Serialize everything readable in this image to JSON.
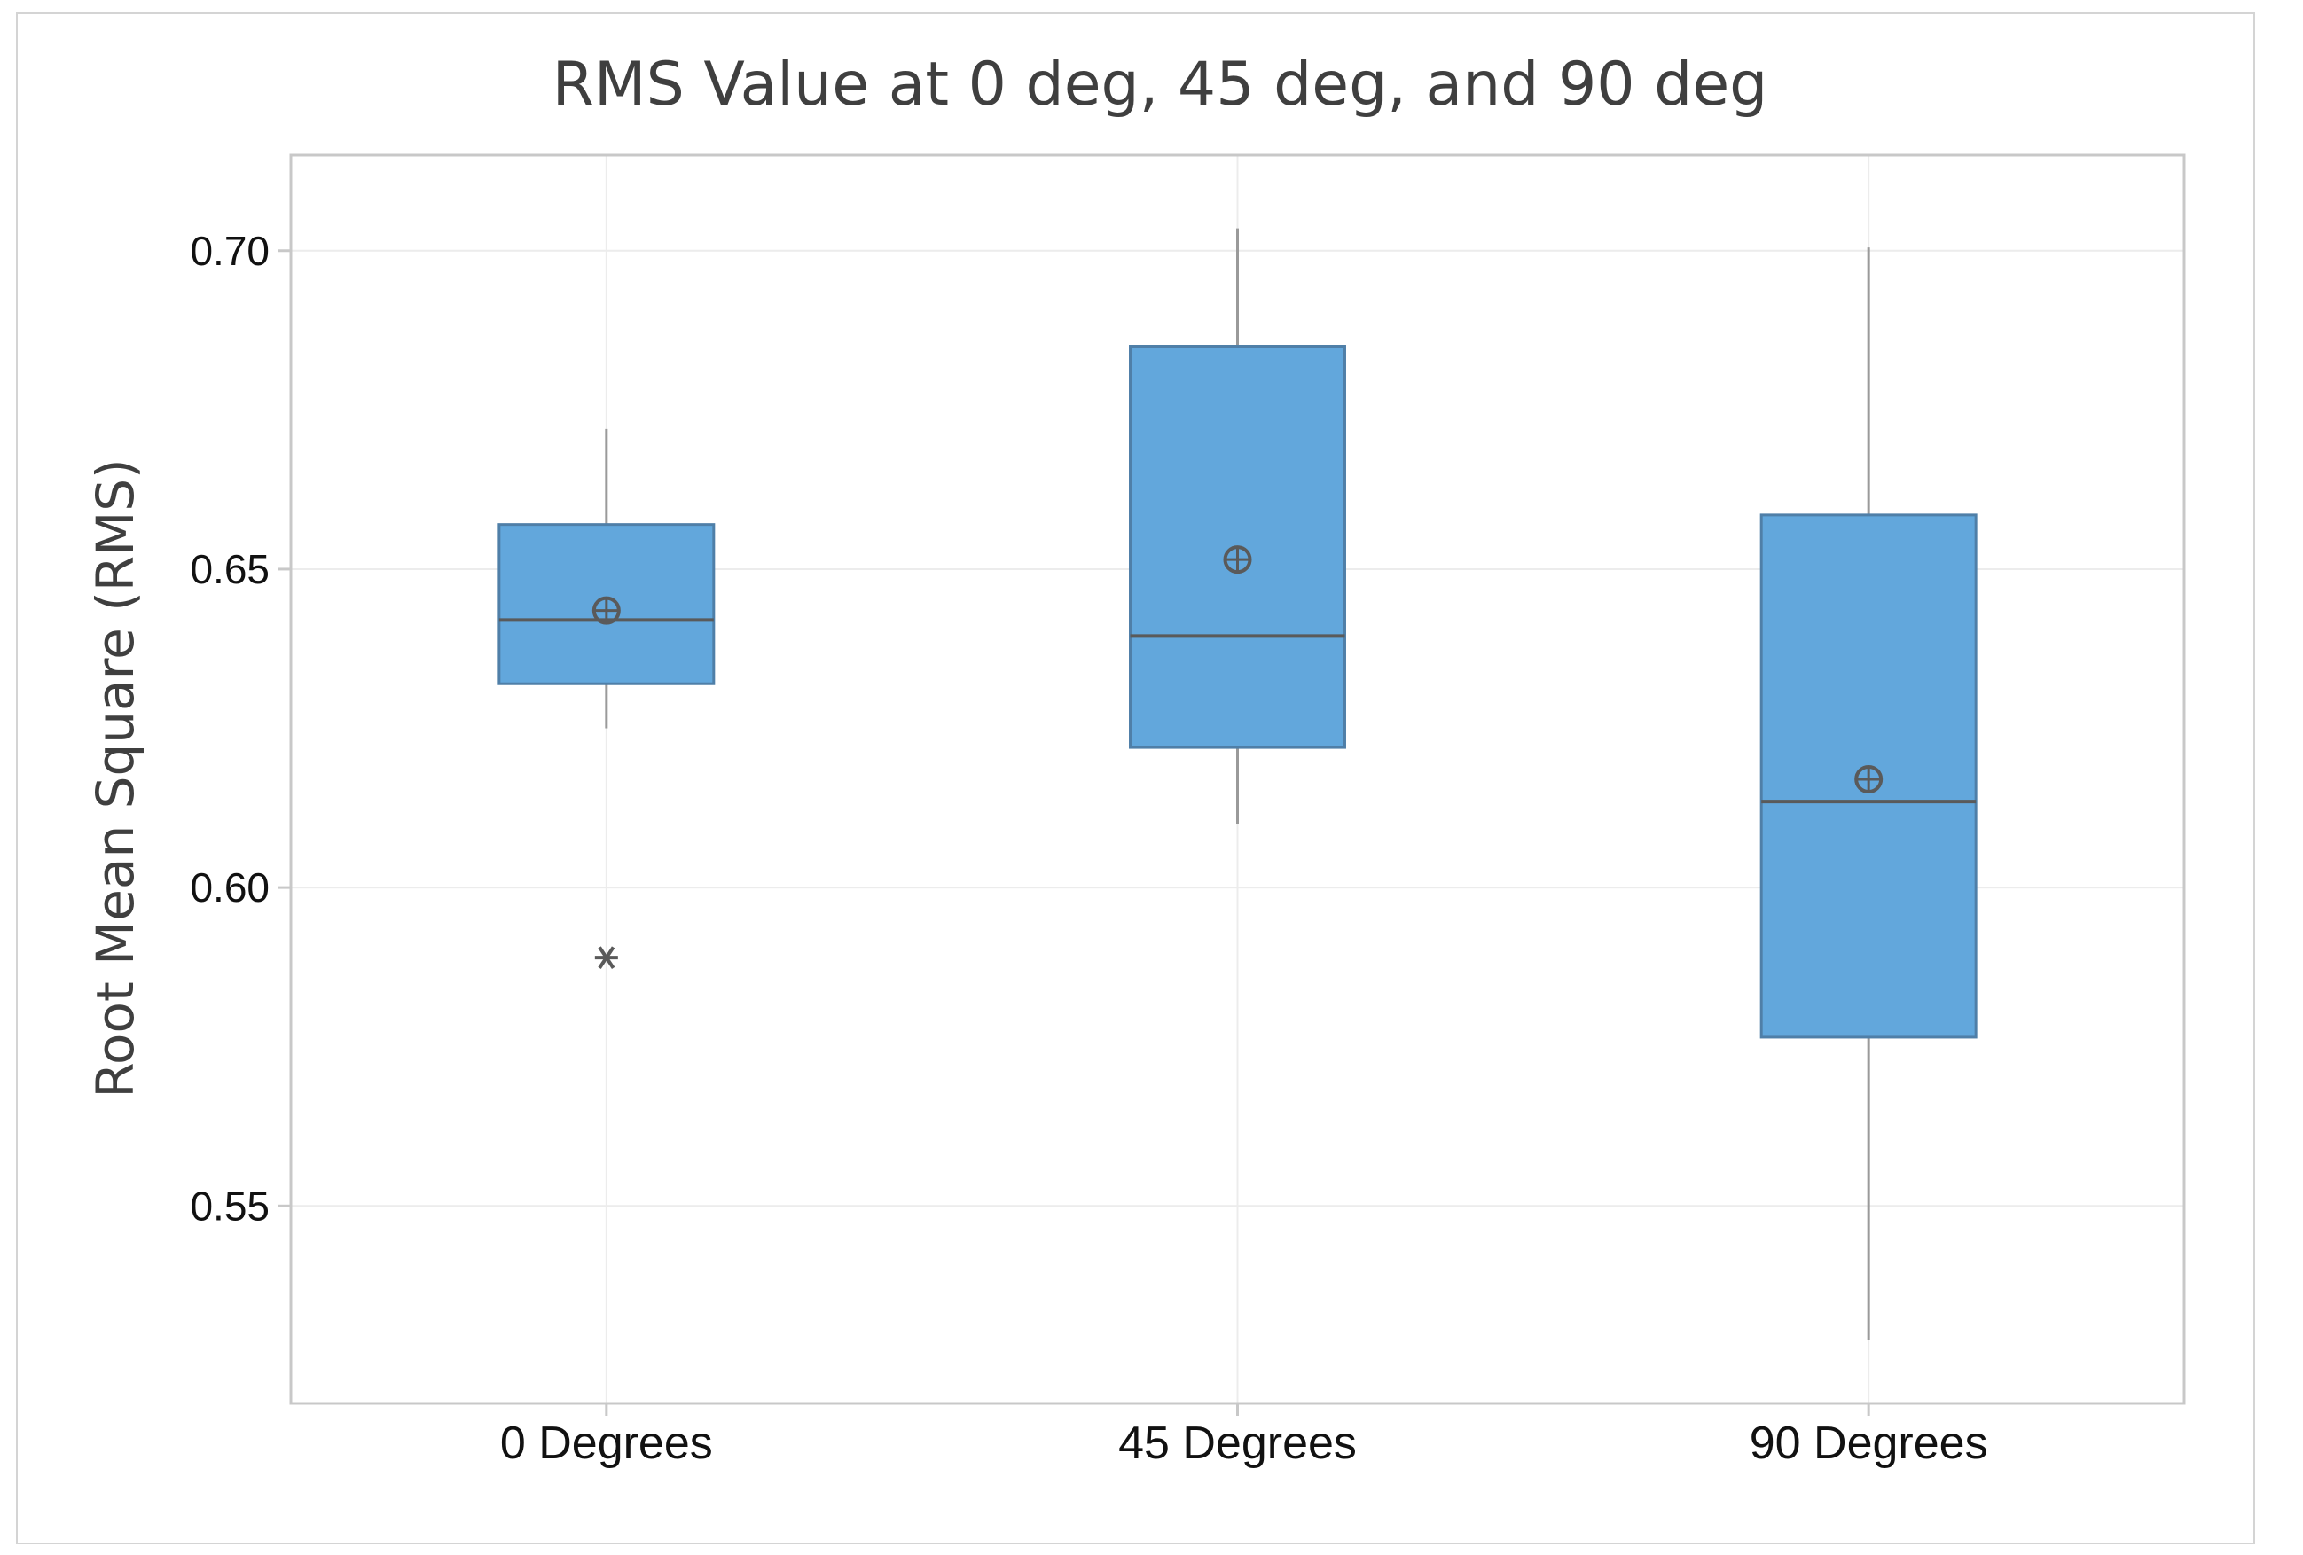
{
  "chart_data": {
    "type": "box",
    "title": "RMS Value at 0 deg, 45 deg, and 90 deg",
    "xlabel": "",
    "ylabel": "Root Mean Square (RMS)",
    "ylim": [
      0.519,
      0.715
    ],
    "yticks": [
      0.55,
      0.6,
      0.65,
      0.7
    ],
    "ytick_labels": [
      "0.55",
      "0.60",
      "0.65",
      "0.70"
    ],
    "grid": true,
    "categories": [
      "0 Degrees",
      "45 Degrees",
      "90 Degrees"
    ],
    "boxes": [
      {
        "category": "0 Degrees",
        "whisker_low": 0.625,
        "q1": 0.632,
        "median": 0.642,
        "q3": 0.657,
        "whisker_high": 0.672,
        "mean": 0.6435,
        "outliers": [
          0.589
        ]
      },
      {
        "category": "45 Degrees",
        "whisker_low": 0.61,
        "q1": 0.622,
        "median": 0.6395,
        "q3": 0.685,
        "whisker_high": 0.7035,
        "mean": 0.6515,
        "outliers": []
      },
      {
        "category": "90 Degrees",
        "whisker_low": 0.529,
        "q1": 0.5765,
        "median": 0.6135,
        "q3": 0.6585,
        "whisker_high": 0.7005,
        "mean": 0.617,
        "outliers": []
      }
    ],
    "colors": {
      "box_fill": "#62a7dc",
      "box_stroke": "#4f7fa8",
      "line": "#5a5a5a",
      "whisker": "#9a9a9a",
      "grid": "#ececec",
      "frame": "#c8c8c8"
    }
  }
}
